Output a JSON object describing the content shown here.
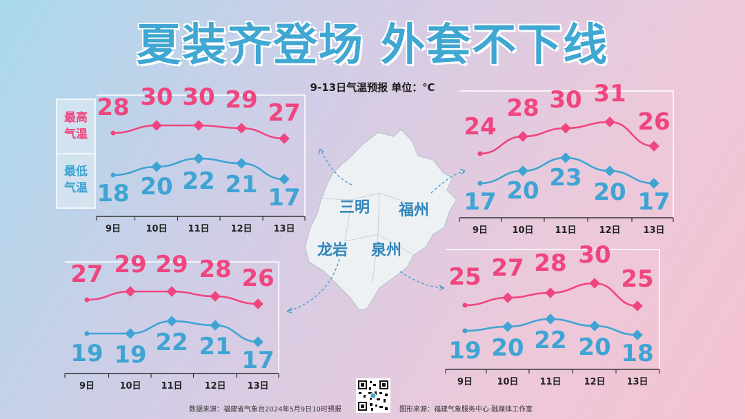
{
  "title": "夏装齐登场 外套不下线",
  "subtitle": "9-13日气温预报 单位：℃",
  "legend": {
    "high": "最高\n气温",
    "low": "最低\n气温"
  },
  "colors": {
    "high": "#f0457e",
    "low": "#3fa4d3",
    "title": "#3fa7d2",
    "city": "#2f86bb"
  },
  "cities": [
    "三明",
    "福州",
    "龙岩",
    "泉州"
  ],
  "footer": {
    "source": "数据来源：福建省气象台2024年5月9日10时预报",
    "graphic": "图形来源：福建气象服务中心·融媒体工作室"
  },
  "chart_data": [
    {
      "type": "line",
      "region": "三明",
      "categories": [
        "9日",
        "10日",
        "11日",
        "12日",
        "13日"
      ],
      "series": [
        {
          "name": "最高气温",
          "values": [
            28,
            30,
            30,
            29,
            27
          ]
        },
        {
          "name": "最低气温",
          "values": [
            18,
            20,
            22,
            21,
            17
          ]
        }
      ]
    },
    {
      "type": "line",
      "region": "福州",
      "categories": [
        "9日",
        "10日",
        "11日",
        "12日",
        "13日"
      ],
      "series": [
        {
          "name": "最高气温",
          "values": [
            24,
            28,
            30,
            31,
            26
          ]
        },
        {
          "name": "最低气温",
          "values": [
            17,
            20,
            23,
            20,
            17
          ]
        }
      ]
    },
    {
      "type": "line",
      "region": "龙岩",
      "categories": [
        "9日",
        "10日",
        "11日",
        "12日",
        "13日"
      ],
      "series": [
        {
          "name": "最高气温",
          "values": [
            27,
            29,
            29,
            28,
            26
          ]
        },
        {
          "name": "最低气温",
          "values": [
            19,
            19,
            22,
            21,
            17
          ]
        }
      ]
    },
    {
      "type": "line",
      "region": "泉州",
      "categories": [
        "9日",
        "10日",
        "11日",
        "12日",
        "13日"
      ],
      "series": [
        {
          "name": "最高气温",
          "values": [
            25,
            27,
            28,
            30,
            25
          ]
        },
        {
          "name": "最低气温",
          "values": [
            19,
            20,
            22,
            20,
            18
          ]
        }
      ]
    }
  ]
}
